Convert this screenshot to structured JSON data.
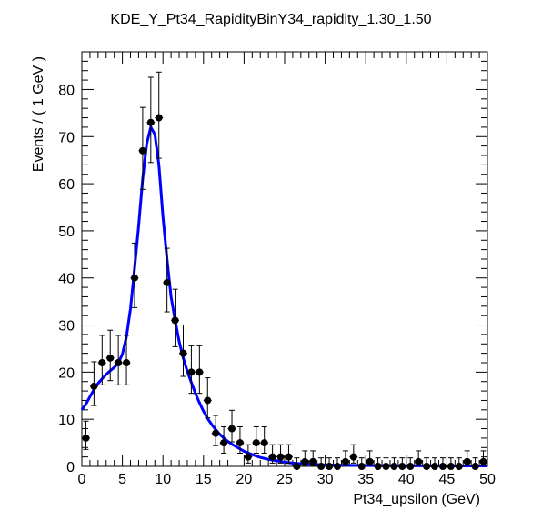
{
  "chart_data": {
    "type": "scatter",
    "title": "KDE_Y_Pt34_RapidityBinY34_rapidity_1.30_1.50",
    "xlabel": "Pt34_upsilon (GeV)",
    "ylabel": "Events / ( 1 GeV )",
    "xlim": [
      0,
      50
    ],
    "ylim": [
      0,
      88
    ],
    "xticks": [
      0,
      5,
      10,
      15,
      20,
      25,
      30,
      35,
      40,
      45,
      50
    ],
    "yticks": [
      0,
      10,
      20,
      30,
      40,
      50,
      60,
      70,
      80
    ],
    "xtick_labels": [
      "0",
      "5",
      "10",
      "15",
      "20",
      "25",
      "30",
      "35",
      "40",
      "45",
      "50"
    ],
    "ytick_labels": [
      "0",
      "10",
      "20",
      "30",
      "40",
      "50",
      "60",
      "70",
      "80"
    ],
    "grid": false,
    "series": [
      {
        "kind": "points-with-errors",
        "color": "#000000",
        "x": [
          0.5,
          1.5,
          2.5,
          3.5,
          4.5,
          5.5,
          6.5,
          7.5,
          8.5,
          9.5,
          10.5,
          11.5,
          12.5,
          13.5,
          14.5,
          15.5,
          16.5,
          17.5,
          18.5,
          19.5,
          20.5,
          21.5,
          22.5,
          23.5,
          24.5,
          25.5,
          26.5,
          27.5,
          28.5,
          29.5,
          30.5,
          31.5,
          32.5,
          33.5,
          34.5,
          35.5,
          36.5,
          37.5,
          38.5,
          39.5,
          40.5,
          41.5,
          42.5,
          43.5,
          44.5,
          45.5,
          46.5,
          47.5,
          48.5,
          49.5
        ],
        "y": [
          6,
          17,
          22,
          23,
          22,
          22,
          40,
          67,
          73,
          74,
          39,
          31,
          24,
          20,
          20,
          14,
          7,
          5,
          8,
          5,
          2,
          5,
          5,
          2,
          2,
          2,
          0,
          1,
          1,
          0,
          0,
          0,
          1,
          2,
          0,
          1,
          0,
          0,
          0,
          0,
          0,
          1,
          0,
          0,
          0,
          0,
          0,
          1,
          0,
          1
        ],
        "err_low": [
          2.4,
          4.1,
          4.7,
          4.8,
          4.7,
          4.7,
          6.3,
          8.2,
          8.5,
          8.6,
          6.2,
          5.6,
          4.9,
          4.5,
          4.5,
          3.7,
          2.6,
          2.2,
          2.8,
          2.2,
          1.3,
          2.2,
          2.2,
          1.3,
          1.3,
          1.3,
          0,
          0.8,
          0.8,
          0,
          0,
          0,
          0.8,
          1.3,
          0,
          0.8,
          0,
          0,
          0,
          0,
          0,
          0.8,
          0,
          0,
          0,
          0,
          0,
          0.8,
          0,
          0.8
        ],
        "err_high": [
          3.6,
          5.2,
          5.8,
          5.9,
          5.8,
          5.8,
          7.4,
          9.2,
          9.6,
          9.7,
          7.3,
          6.6,
          6.0,
          5.6,
          5.6,
          4.8,
          3.8,
          3.4,
          3.9,
          3.4,
          2.6,
          3.4,
          3.4,
          2.6,
          2.6,
          2.6,
          1.8,
          2.3,
          2.3,
          1.8,
          1.8,
          1.8,
          2.3,
          2.6,
          1.8,
          2.3,
          1.8,
          1.8,
          1.8,
          1.8,
          1.8,
          2.3,
          1.8,
          1.8,
          1.8,
          1.8,
          1.8,
          2.3,
          1.8,
          2.3
        ]
      },
      {
        "kind": "curve",
        "color": "#0000ff",
        "x": [
          0,
          0.5,
          1,
          1.5,
          2,
          2.5,
          3,
          3.5,
          4,
          4.5,
          5,
          5.5,
          6,
          6.5,
          7,
          7.5,
          8,
          8.5,
          9,
          9.5,
          10,
          10.5,
          11,
          11.5,
          12,
          12.5,
          13,
          13.5,
          14,
          14.5,
          15,
          15.5,
          16,
          16.5,
          17,
          17.5,
          18,
          18.5,
          19,
          19.5,
          20,
          21,
          22,
          23,
          24,
          25,
          26,
          27,
          28,
          29,
          30,
          32,
          34,
          36,
          38,
          40,
          42,
          44,
          46,
          48,
          50
        ],
        "y": [
          12,
          13.2,
          14.8,
          16.3,
          17.6,
          18.6,
          19.5,
          20.3,
          21.0,
          22.0,
          23.8,
          27.5,
          33.5,
          42,
          51,
          61,
          68.5,
          72,
          70.5,
          64,
          53,
          44,
          36,
          31,
          26.5,
          23,
          20.2,
          17.8,
          15.5,
          13.5,
          11.7,
          10.2,
          8.9,
          7.8,
          6.8,
          6.0,
          5.3,
          4.7,
          4.2,
          3.7,
          3.2,
          2.5,
          1.9,
          1.5,
          1.2,
          0.9,
          0.7,
          0.55,
          0.45,
          0.38,
          0.32,
          0.25,
          0.2,
          0.17,
          0.15,
          0.13,
          0.12,
          0.11,
          0.1,
          0.1,
          0.1
        ]
      }
    ]
  }
}
